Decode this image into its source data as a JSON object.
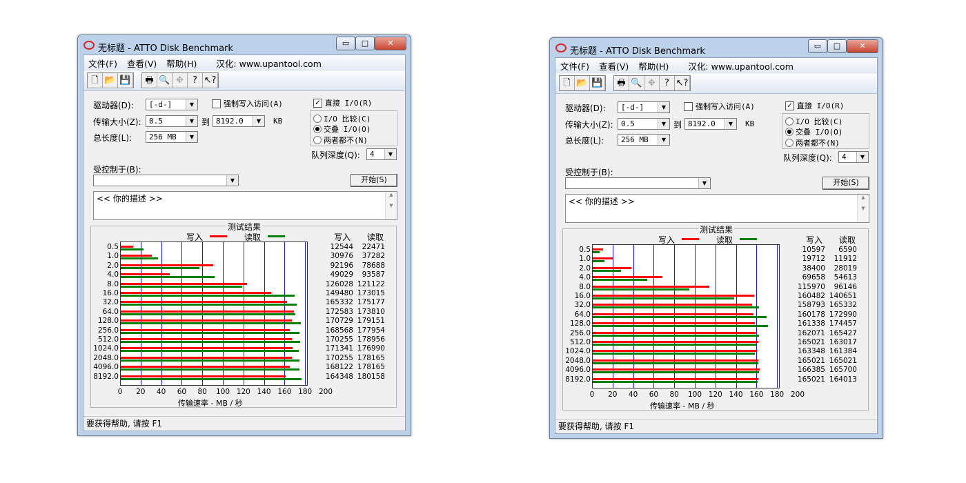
{
  "ui": {
    "title": "无标题 - ATTO Disk Benchmark",
    "window_buttons": {
      "minimize": "▭",
      "maximize": "□",
      "close": "✕"
    },
    "menu": [
      "文件(F)",
      "查看(V)",
      "帮助(H)",
      "汉化: www.upantool.com"
    ],
    "toolbar_icons": [
      "new-icon",
      "open-icon",
      "save-icon",
      "print-icon",
      "print-preview-icon",
      "move-icon",
      "help-icon",
      "context-help-icon"
    ],
    "toolbar_glyphs": [
      "🗋",
      "📂",
      "💾",
      "🖶",
      "🔍",
      "✥",
      "?",
      "↖?"
    ],
    "drive_label": "驱动器(D):",
    "drive_value": "[-d-]",
    "force_write_label": "强制写入访问(A)",
    "force_write_checked": false,
    "direct_io_label": "直接 I/O(R)",
    "direct_io_checked": true,
    "transfer_label": "传输大小(Z):",
    "transfer_from": "0.5",
    "to_label": "到",
    "transfer_to": "8192.0",
    "kb_label": "KB",
    "total_label": "总长度(L):",
    "total_value": "256 MB",
    "io_compare_label": "I/O 比较(C)",
    "overlapped_label": "交叠 I/O(O)",
    "neither_label": "两者都不(N)",
    "selected_radio": "overlapped",
    "queue_label": "队列深度(Q):",
    "queue_value": "4",
    "controlled_label": "受控制于(B):",
    "controlled_value": "",
    "start_label": "开始(S)",
    "description": "<<  你的描述   >>",
    "results_title": "测试结果",
    "write_label": "写入",
    "read_label": "读取",
    "status": "要获得帮助, 请按 F1",
    "colors": {
      "write": "#ff0000",
      "read": "#008000",
      "grid": "#1a1adc"
    }
  },
  "chart_data": [
    {
      "type": "bar",
      "orientation": "horizontal",
      "title": "测试结果",
      "xlabel": "传输速率 - MB / 秒",
      "xlim": [
        0,
        200
      ],
      "xticks": [
        0,
        20,
        40,
        60,
        80,
        100,
        120,
        140,
        160,
        180,
        200
      ],
      "grid": true,
      "legend": "top",
      "categories": [
        "0.5",
        "1.0",
        "2.0",
        "4.0",
        "8.0",
        "16.0",
        "32.0",
        "64.0",
        "128.0",
        "256.0",
        "512.0",
        "1024.0",
        "2048.0",
        "4096.0",
        "8192.0"
      ],
      "series": [
        {
          "name": "写入",
          "values": [
            12544,
            30976,
            92196,
            49029,
            126028,
            149480,
            165332,
            172583,
            170729,
            168568,
            170255,
            171341,
            170255,
            168122,
            164348
          ]
        },
        {
          "name": "读取",
          "values": [
            22471,
            37282,
            78688,
            93587,
            121122,
            173015,
            175177,
            173810,
            179151,
            177954,
            178956,
            176990,
            178165,
            178165,
            180158
          ]
        }
      ]
    },
    {
      "type": "bar",
      "orientation": "horizontal",
      "title": "测试结果",
      "xlabel": "传输速率 - MB / 秒",
      "xlim": [
        0,
        200
      ],
      "xticks": [
        0,
        20,
        40,
        60,
        80,
        100,
        120,
        140,
        160,
        180,
        200
      ],
      "grid": true,
      "legend": "top",
      "categories": [
        "0.5",
        "1.0",
        "2.0",
        "4.0",
        "8.0",
        "16.0",
        "32.0",
        "64.0",
        "128.0",
        "256.0",
        "512.0",
        "1024.0",
        "2048.0",
        "4096.0",
        "8192.0"
      ],
      "series": [
        {
          "name": "写入",
          "values": [
            10597,
            19712,
            38400,
            69658,
            115970,
            160482,
            158793,
            160178,
            161338,
            162071,
            165021,
            163348,
            165021,
            166385,
            165021
          ]
        },
        {
          "name": "读取",
          "values": [
            6590,
            11912,
            28019,
            54613,
            96146,
            140651,
            165332,
            172990,
            174457,
            165427,
            163017,
            161384,
            165021,
            165700,
            164013
          ]
        }
      ]
    }
  ]
}
